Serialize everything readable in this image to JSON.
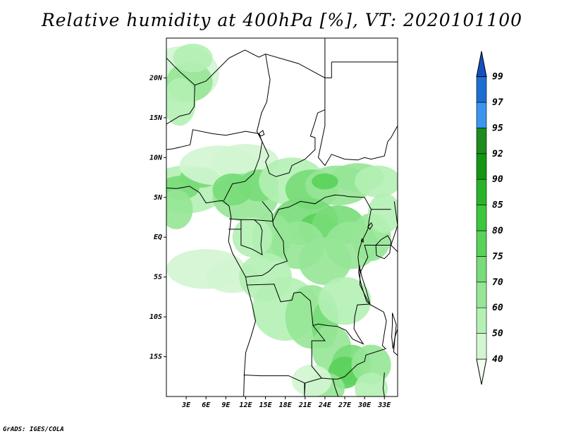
{
  "title": "Relative humidity at 400hPa [%], VT: 2020101100",
  "credit": "GrADS: IGES/COLA",
  "map": {
    "lon_range": [
      0,
      35
    ],
    "lat_range": [
      -20,
      25
    ],
    "lat_ticks": [
      {
        "value": 20,
        "label": "20N"
      },
      {
        "value": 15,
        "label": "15N"
      },
      {
        "value": 10,
        "label": "10N"
      },
      {
        "value": 5,
        "label": "5N"
      },
      {
        "value": 0,
        "label": "EQ"
      },
      {
        "value": -5,
        "label": "5S"
      },
      {
        "value": -10,
        "label": "10S"
      },
      {
        "value": -15,
        "label": "15S"
      }
    ],
    "lon_ticks": [
      {
        "value": 3,
        "label": "3E"
      },
      {
        "value": 6,
        "label": "6E"
      },
      {
        "value": 9,
        "label": "9E"
      },
      {
        "value": 12,
        "label": "12E"
      },
      {
        "value": 15,
        "label": "15E"
      },
      {
        "value": 18,
        "label": "18E"
      },
      {
        "value": 21,
        "label": "21E"
      },
      {
        "value": 24,
        "label": "24E"
      },
      {
        "value": 27,
        "label": "27E"
      },
      {
        "value": 30,
        "label": "30E"
      },
      {
        "value": 33,
        "label": "33E"
      }
    ]
  },
  "colorbar": {
    "levels": [
      "40",
      "50",
      "60",
      "70",
      "75",
      "80",
      "85",
      "90",
      "92",
      "95",
      "97",
      "99"
    ],
    "colors": [
      "#f0fff0",
      "#d2f5d2",
      "#b4f0b4",
      "#96e696",
      "#78dc78",
      "#5ad25a",
      "#3cc83c",
      "#28b428",
      "#149614",
      "#1e8c1e",
      "#3c96f0",
      "#1e6ed2",
      "#1450be"
    ]
  }
}
